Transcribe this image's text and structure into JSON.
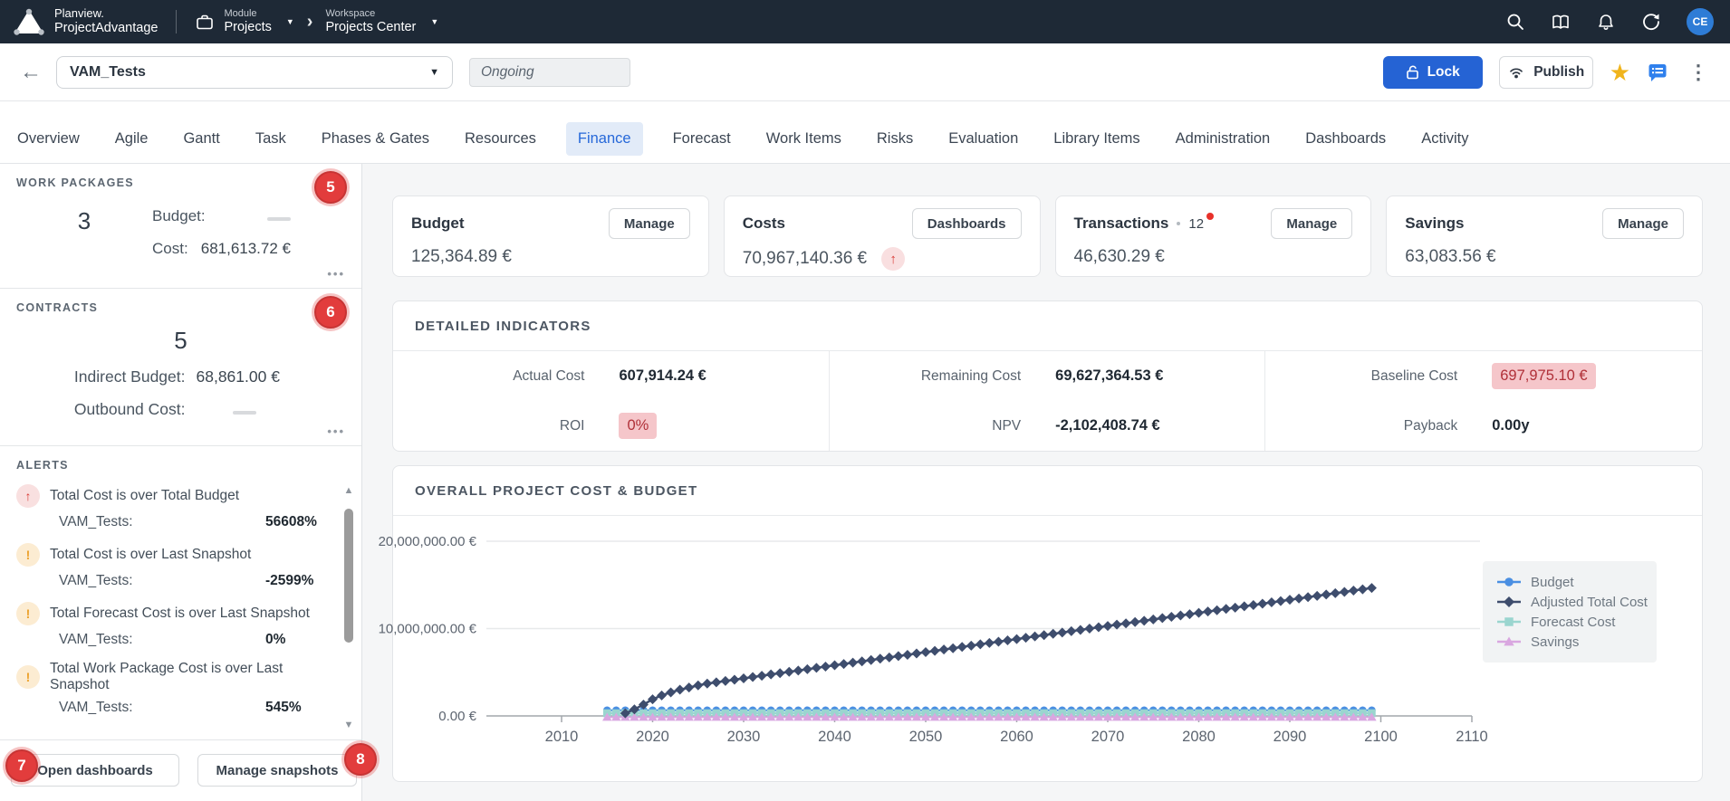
{
  "topbar": {
    "brand_line1": "Planview.",
    "brand_line2": "ProjectAdvantage",
    "module_label": "Module",
    "module_value": "Projects",
    "workspace_label": "Workspace",
    "workspace_value": "Projects Center",
    "avatar_initials": "CE"
  },
  "header": {
    "project_name": "VAM_Tests",
    "status_value": "Ongoing",
    "lock_label": "Lock",
    "publish_label": "Publish"
  },
  "tabs": [
    "Overview",
    "Agile",
    "Gantt",
    "Task",
    "Phases & Gates",
    "Resources",
    "Finance",
    "Forecast",
    "Work Items",
    "Risks",
    "Evaluation",
    "Library Items",
    "Administration",
    "Dashboards",
    "Activity"
  ],
  "active_tab": "Finance",
  "sidebar": {
    "work_packages": {
      "title": "WORK PACKAGES",
      "count": "3",
      "badge": "5",
      "budget_label": "Budget:",
      "cost_label": "Cost:",
      "cost_value": "681,613.72 €"
    },
    "contracts": {
      "title": "CONTRACTS",
      "count": "5",
      "badge": "6",
      "indirect_label": "Indirect Budget:",
      "indirect_value": "68,861.00 €",
      "outbound_label": "Outbound Cost:"
    },
    "alerts": {
      "title": "ALERTS",
      "items": [
        {
          "icon": "trend-up",
          "title": "Total Cost is over Total Budget",
          "project": "VAM_Tests:",
          "value": "56608%"
        },
        {
          "icon": "warning",
          "title": "Total Cost is over Last Snapshot",
          "project": "VAM_Tests:",
          "value": "-2599%"
        },
        {
          "icon": "warning",
          "title": "Total Forecast Cost is over Last Snapshot",
          "project": "VAM_Tests:",
          "value": "0%"
        },
        {
          "icon": "warning",
          "title": "Total Work Package Cost is over Last Snapshot",
          "project": "VAM_Tests:",
          "value": "545%"
        }
      ]
    },
    "footer": {
      "open_dashboards": "Open dashboards",
      "open_dashboards_badge": "7",
      "manage_snapshots": "Manage snapshots",
      "manage_snapshots_badge": "8"
    }
  },
  "summary_cards": [
    {
      "title": "Budget",
      "action": "Manage",
      "value": "125,364.89 €"
    },
    {
      "title": "Costs",
      "action": "Dashboards",
      "value": "70,967,140.36 €",
      "trend": "up"
    },
    {
      "title": "Transactions",
      "count": "12",
      "action": "Manage",
      "value": "46,630.29 €",
      "notification_dot": true
    },
    {
      "title": "Savings",
      "action": "Manage",
      "value": "63,083.56 €"
    }
  ],
  "indicators": {
    "title": "DETAILED INDICATORS",
    "cells": [
      {
        "label": "Actual Cost",
        "value": "607,914.24 €"
      },
      {
        "label": "Remaining Cost",
        "value": "69,627,364.53 €"
      },
      {
        "label": "Baseline Cost",
        "value": "697,975.10 €",
        "highlight": true
      },
      {
        "label": "ROI",
        "value": "0%",
        "highlight": true
      },
      {
        "label": "NPV",
        "value": "-2,102,408.74 €"
      },
      {
        "label": "Payback",
        "value": "0.00y"
      }
    ]
  },
  "chart_data": {
    "type": "line",
    "title": "OVERALL PROJECT COST & BUDGET",
    "xlabel": "",
    "ylabel": "",
    "x_ticks": [
      2010,
      2020,
      2030,
      2040,
      2050,
      2060,
      2070,
      2080,
      2090,
      2100,
      2110
    ],
    "y_ticks": [
      {
        "value_eur": 0,
        "label": "0.00 €"
      },
      {
        "value_eur": 10000000,
        "label": "10,000,000.00 €"
      },
      {
        "value_eur": 20000000,
        "label": "20,000,000.00 €"
      }
    ],
    "xlim": [
      2010,
      2110
    ],
    "ylim_eur": [
      0,
      22000000
    ],
    "grid": "horizontal",
    "legend_position": "right",
    "series": [
      {
        "name": "Budget",
        "color": "#4a8fe2",
        "marker": "circle",
        "start_year": 2015,
        "end_year": 2099,
        "flat_value_eur": 125364.89
      },
      {
        "name": "Adjusted Total Cost",
        "color": "#3e4d6d",
        "marker": "diamond",
        "start_year": 2017,
        "values_eur_millions": [
          0.3,
          0.75,
          1.3,
          1.9,
          2.35,
          2.7,
          3.0,
          3.25,
          3.5,
          3.7,
          3.85,
          4.0,
          4.15,
          4.3,
          4.45,
          4.6,
          4.75,
          4.9,
          5.05,
          5.2,
          5.35,
          5.5,
          5.65,
          5.8,
          5.95,
          6.1,
          6.25,
          6.4,
          6.55,
          6.7,
          6.85,
          7.0,
          7.15,
          7.3,
          7.45,
          7.6,
          7.75,
          7.9,
          8.05,
          8.2,
          8.35,
          8.5,
          8.65,
          8.8,
          8.95,
          9.1,
          9.25,
          9.4,
          9.55,
          9.7,
          9.85,
          10.0,
          10.15,
          10.3,
          10.45,
          10.6,
          10.75,
          10.9,
          11.05,
          11.2,
          11.35,
          11.5,
          11.65,
          11.8,
          11.95,
          12.1,
          12.25,
          12.4,
          12.55,
          12.7,
          12.85,
          13.0,
          13.15,
          13.3,
          13.45,
          13.6,
          13.75,
          13.9,
          14.05,
          14.2,
          14.35,
          14.5,
          14.65
        ]
      },
      {
        "name": "Forecast Cost",
        "color": "#9ad5cf",
        "marker": "square",
        "start_year": 2015,
        "end_year": 2099,
        "flat_value_eur": 100000
      },
      {
        "name": "Savings",
        "color": "#d9a7e0",
        "marker": "triangle",
        "start_year": 2015,
        "end_year": 2099,
        "flat_value_eur": 63083.56
      }
    ]
  },
  "icons": {
    "back-arrow": "←",
    "caret-down": "▼",
    "breadcrumb-chevron": "›",
    "star": "★",
    "kebab": "⋮",
    "more-options": "•••",
    "trend-up-arrow": "↑",
    "warning-mark": "!",
    "scroll-up": "▲",
    "scroll-down": "▼"
  },
  "colors": {
    "topbar_bg": "#1e2936",
    "accent_blue": "#2563d4",
    "active_tab_bg": "#e2ebf8",
    "badge_red": "#e23c3c",
    "alert_red": "#d93a35",
    "alert_orange": "#eca22d",
    "highlight_bg": "#f5c6ca",
    "highlight_text": "#b03038",
    "star_yellow": "#f0b41c",
    "note_blue": "#2f80ed",
    "avatar_bg": "#2e7cd6",
    "series_budget": "#4a8fe2",
    "series_adjusted_total_cost": "#3e4d6d",
    "series_forecast_cost": "#9ad5cf",
    "series_savings": "#d9a7e0"
  }
}
